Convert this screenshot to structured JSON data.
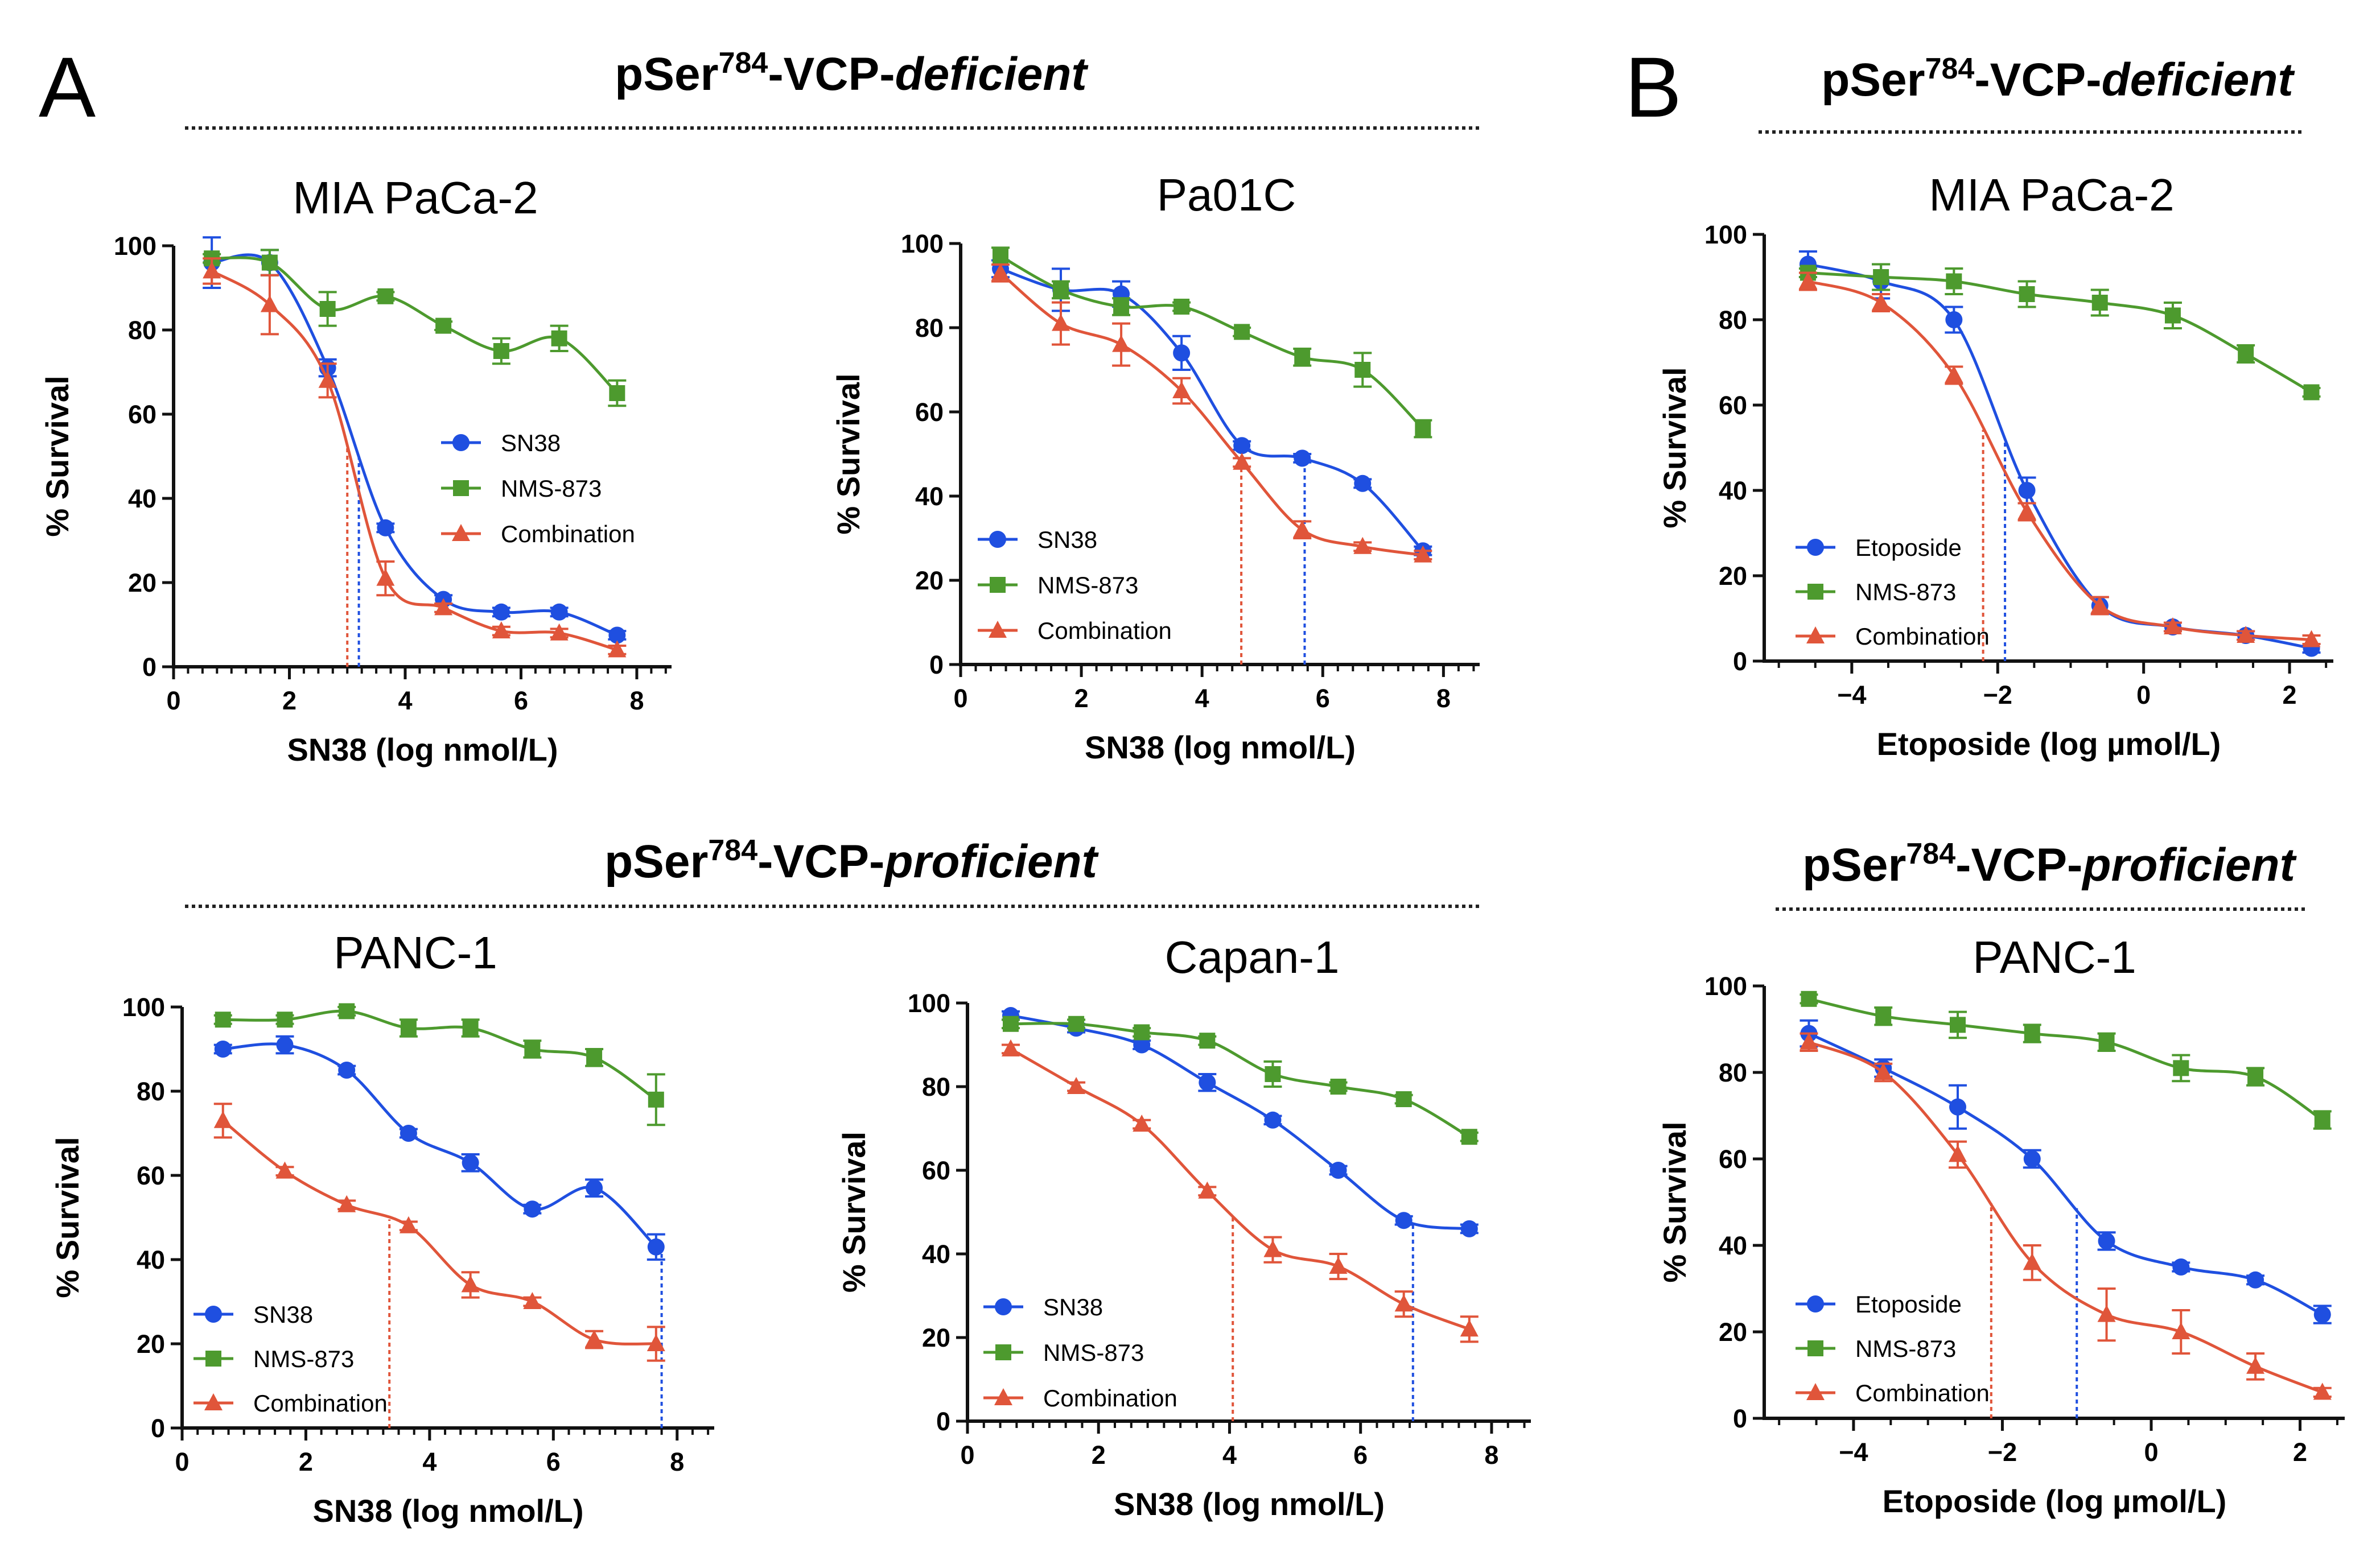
{
  "figure": {
    "panel_a": "A",
    "panel_b": "B",
    "section_titles": {
      "a_deficient": {
        "prefix": "pSer",
        "sup": "784",
        "middle": "-VCP-",
        "suffix": "deficient"
      },
      "a_proficient": {
        "prefix": "pSer",
        "sup": "784",
        "middle": "-VCP-",
        "suffix": "proficient"
      },
      "b_deficient": {
        "prefix": "pSer",
        "sup": "784",
        "middle": "-VCP-",
        "suffix": "deficient"
      },
      "b_proficient": {
        "prefix": "pSer",
        "sup": "784",
        "middle": "-VCP-",
        "suffix": "proficient"
      }
    },
    "colors": {
      "blue": "#1f4fe0",
      "green": "#4d9a2e",
      "red": "#e0553a"
    }
  },
  "chart_data": [
    {
      "id": "mia-sn38",
      "type": "scatter",
      "title": "MIA PaCa-2",
      "xlabel": "SN38 (log nmol/L)",
      "ylabel": "% Survival",
      "xlim": [
        0,
        8.6
      ],
      "ylim": [
        0,
        100
      ],
      "xticks": [
        "0",
        "2",
        "4",
        "6",
        "8"
      ],
      "yticks": [
        "0",
        "20",
        "40",
        "60",
        "80",
        "100"
      ],
      "legend_position": "center-right",
      "x": [
        0.66,
        1.66,
        2.66,
        3.66,
        4.66,
        5.66,
        6.66,
        7.66
      ],
      "series": [
        {
          "name": "SN38",
          "marker": "circle",
          "color": "#1f4fe0",
          "values": [
            96,
            96,
            71,
            33,
            16,
            13,
            13,
            7.5
          ],
          "err": [
            6,
            3,
            2,
            1,
            1,
            1,
            1,
            1
          ],
          "ic50": 3.2
        },
        {
          "name": "NMS-873",
          "marker": "square",
          "color": "#4d9a2e",
          "values": [
            97,
            96,
            85,
            88,
            81,
            75,
            78,
            65
          ],
          "err": [
            1,
            3,
            4,
            1,
            1,
            3,
            3,
            3
          ]
        },
        {
          "name": "Combination",
          "marker": "triangle",
          "color": "#e0553a",
          "values": [
            94,
            86,
            68,
            21,
            14,
            8.5,
            8,
            4
          ],
          "err": [
            3,
            7,
            4,
            4,
            1,
            1,
            1,
            1
          ],
          "ic50": 3.0
        }
      ]
    },
    {
      "id": "pa01c-sn38",
      "type": "scatter",
      "title": "Pa01C",
      "xlabel": "SN38 (log nmol/L)",
      "ylabel": "% Survival",
      "xlim": [
        0,
        8.6
      ],
      "ylim": [
        0,
        100
      ],
      "xticks": [
        "0",
        "2",
        "4",
        "6",
        "8"
      ],
      "yticks": [
        "0",
        "20",
        "40",
        "60",
        "80",
        "100"
      ],
      "legend_position": "bottom-left",
      "x": [
        0.66,
        1.66,
        2.66,
        3.66,
        4.66,
        5.66,
        6.66,
        7.66
      ],
      "series": [
        {
          "name": "SN38",
          "marker": "circle",
          "color": "#1f4fe0",
          "values": [
            94,
            89,
            88,
            74,
            52,
            49,
            43,
            27
          ],
          "err": [
            2,
            5,
            3,
            4,
            1,
            1,
            1,
            1
          ],
          "ic50": 5.7
        },
        {
          "name": "NMS-873",
          "marker": "square",
          "color": "#4d9a2e",
          "values": [
            97,
            89,
            85,
            85,
            79,
            73,
            70,
            56
          ],
          "err": [
            2,
            2,
            2,
            1,
            1,
            2,
            4,
            2
          ]
        },
        {
          "name": "Combination",
          "marker": "triangle",
          "color": "#e0553a",
          "values": [
            93,
            81,
            76,
            65,
            48,
            32,
            28,
            26
          ],
          "err": [
            2,
            5,
            5,
            3,
            1,
            2,
            1,
            1
          ],
          "ic50": 4.65
        }
      ]
    },
    {
      "id": "mia-etoposide",
      "type": "scatter",
      "title": "MIA PaCa-2",
      "xlabel": "Etoposide (log µmol/L)",
      "ylabel": "% Survival",
      "xlim": [
        -5.2,
        2.6
      ],
      "ylim": [
        0,
        100
      ],
      "xticks": [
        "-4",
        "-2",
        "0",
        "2"
      ],
      "yticks": [
        "0",
        "20",
        "40",
        "60",
        "80",
        "100"
      ],
      "legend_position": "bottom-left",
      "x": [
        -4.6,
        -3.6,
        -2.6,
        -1.6,
        -0.6,
        0.4,
        1.4,
        2.3
      ],
      "series": [
        {
          "name": "Etoposide",
          "marker": "circle",
          "color": "#1f4fe0",
          "values": [
            93,
            89,
            80,
            40,
            13,
            8,
            6,
            3
          ],
          "err": [
            3,
            4,
            3,
            3,
            2,
            1,
            1,
            1
          ],
          "ic50": -1.9
        },
        {
          "name": "NMS-873",
          "marker": "square",
          "color": "#4d9a2e",
          "values": [
            91,
            90,
            89,
            86,
            84,
            81,
            72,
            63
          ],
          "err": [
            1,
            3,
            3,
            3,
            3,
            3,
            2,
            1
          ]
        },
        {
          "name": "Combination",
          "marker": "triangle",
          "color": "#e0553a",
          "values": [
            89,
            84,
            67,
            35,
            13,
            8,
            6,
            5
          ],
          "err": [
            2,
            2,
            2,
            2,
            2,
            1,
            1,
            1
          ],
          "ic50": -2.2
        }
      ]
    },
    {
      "id": "panc1-sn38",
      "type": "scatter",
      "title": "PANC-1",
      "xlabel": "SN38 (log nmol/L)",
      "ylabel": "% Survival",
      "xlim": [
        0,
        8.6
      ],
      "ylim": [
        0,
        100
      ],
      "xticks": [
        "0",
        "2",
        "4",
        "6",
        "8"
      ],
      "yticks": [
        "0",
        "20",
        "40",
        "60",
        "80",
        "100"
      ],
      "legend_position": "bottom-left",
      "x": [
        0.66,
        1.66,
        2.66,
        3.66,
        4.66,
        5.66,
        6.66,
        7.66
      ],
      "series": [
        {
          "name": "SN38",
          "marker": "circle",
          "color": "#1f4fe0",
          "values": [
            90,
            91,
            85,
            70,
            63,
            52,
            57,
            43
          ],
          "err": [
            1,
            2,
            1,
            1,
            2,
            1,
            2,
            3
          ],
          "ic50": 7.75
        },
        {
          "name": "NMS-873",
          "marker": "square",
          "color": "#4d9a2e",
          "values": [
            97,
            97,
            99,
            95,
            95,
            90,
            88,
            78
          ],
          "err": [
            1,
            1,
            1,
            2,
            2,
            2,
            2,
            6
          ]
        },
        {
          "name": "Combination",
          "marker": "triangle",
          "color": "#e0553a",
          "values": [
            73,
            61,
            53,
            48,
            34,
            30,
            21,
            20
          ],
          "err": [
            4,
            1,
            1,
            1,
            3,
            1,
            2,
            4
          ],
          "ic50": 3.35
        }
      ]
    },
    {
      "id": "capan1-sn38",
      "type": "scatter",
      "title": "Capan-1",
      "xlabel": "SN38 (log nmol/L)",
      "ylabel": "% Survival",
      "xlim": [
        0,
        8.6
      ],
      "ylim": [
        0,
        100
      ],
      "xticks": [
        "0",
        "2",
        "4",
        "6",
        "8"
      ],
      "yticks": [
        "0",
        "20",
        "40",
        "60",
        "80",
        "100"
      ],
      "legend_position": "bottom-left",
      "x": [
        0.66,
        1.66,
        2.66,
        3.66,
        4.66,
        5.66,
        6.66,
        7.66
      ],
      "series": [
        {
          "name": "SN38",
          "marker": "circle",
          "color": "#1f4fe0",
          "values": [
            97,
            94,
            90,
            81,
            72,
            60,
            48,
            46
          ],
          "err": [
            1,
            1,
            1,
            2,
            1,
            1,
            1,
            1
          ],
          "ic50": 6.8
        },
        {
          "name": "NMS-873",
          "marker": "square",
          "color": "#4d9a2e",
          "values": [
            95,
            95,
            93,
            91,
            83,
            80,
            77,
            68
          ],
          "err": [
            1,
            1,
            1,
            1,
            3,
            1,
            1,
            1
          ]
        },
        {
          "name": "Combination",
          "marker": "triangle",
          "color": "#e0553a",
          "values": [
            89,
            80,
            71,
            55,
            41,
            37,
            28,
            22
          ],
          "err": [
            1,
            1,
            1,
            1,
            3,
            3,
            3,
            3
          ],
          "ic50": 4.05
        }
      ]
    },
    {
      "id": "panc1-etoposide",
      "type": "scatter",
      "title": "PANC-1",
      "xlabel": "Etoposide (log µmol/L)",
      "ylabel": "% Survival",
      "xlim": [
        -5.2,
        2.6
      ],
      "ylim": [
        0,
        100
      ],
      "xticks": [
        "-4",
        "-2",
        "0",
        "2"
      ],
      "yticks": [
        "0",
        "20",
        "40",
        "60",
        "80",
        "100"
      ],
      "legend_position": "bottom-left",
      "x": [
        -4.6,
        -3.6,
        -2.6,
        -1.6,
        -0.6,
        0.4,
        1.4,
        2.3
      ],
      "series": [
        {
          "name": "Etoposide",
          "marker": "circle",
          "color": "#1f4fe0",
          "values": [
            89,
            81,
            72,
            60,
            41,
            35,
            32,
            24
          ],
          "err": [
            3,
            2,
            5,
            2,
            2,
            1,
            1,
            2
          ],
          "ic50": -1.0
        },
        {
          "name": "NMS-873",
          "marker": "square",
          "color": "#4d9a2e",
          "values": [
            97,
            93,
            91,
            89,
            87,
            81,
            79,
            69
          ],
          "err": [
            1,
            2,
            3,
            2,
            2,
            3,
            2,
            2
          ]
        },
        {
          "name": "Combination",
          "marker": "triangle",
          "color": "#e0553a",
          "values": [
            87,
            80,
            61,
            36,
            24,
            20,
            12,
            6
          ],
          "err": [
            2,
            2,
            3,
            4,
            6,
            5,
            3,
            1
          ],
          "ic50": -2.15
        }
      ]
    }
  ]
}
